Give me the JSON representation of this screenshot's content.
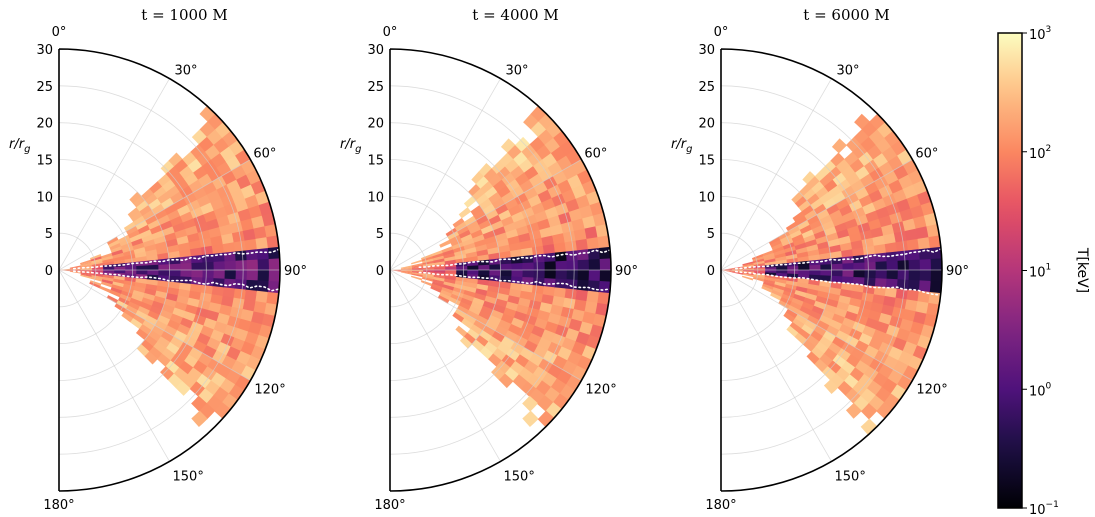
{
  "chart_data": [
    {
      "type": "heatmap",
      "title": "t = 1000 M",
      "projection": "polar-half",
      "ylabel": "r/r_g",
      "r_ticks": [
        "30",
        "25",
        "20",
        "15",
        "10",
        "5",
        "0"
      ],
      "theta_ticks": [
        "0°",
        "30°",
        "60°",
        "90°",
        "120°",
        "150°",
        "180°"
      ],
      "rlim": [
        0,
        30
      ],
      "theta_range_deg": [
        0,
        180
      ],
      "cold_band": {
        "theta_min_deg": 85,
        "theta_max_deg": 95,
        "r_start": 6,
        "value_keV": 0.3
      },
      "wedge_deg": 45,
      "seed": 11,
      "grid": true
    },
    {
      "type": "heatmap",
      "title": "t = 4000 M",
      "projection": "polar-half",
      "ylabel": "r/r_g",
      "r_ticks": [
        "30",
        "25",
        "20",
        "15",
        "10",
        "5",
        "0"
      ],
      "theta_ticks": [
        "0°",
        "30°",
        "60°",
        "90°",
        "120°",
        "150°",
        "180°"
      ],
      "rlim": [
        0,
        30
      ],
      "theta_range_deg": [
        0,
        180
      ],
      "cold_band": {
        "theta_min_deg": 85,
        "theta_max_deg": 95,
        "r_start": 8,
        "value_keV": 0.15
      },
      "wedge_deg": 45,
      "seed": 23,
      "grid": true
    },
    {
      "type": "heatmap",
      "title": "t = 6000 M",
      "projection": "polar-half",
      "ylabel": "r/r_g",
      "r_ticks": [
        "30",
        "25",
        "20",
        "15",
        "10",
        "5",
        "0"
      ],
      "theta_ticks": [
        "0°",
        "30°",
        "60°",
        "90°",
        "120°",
        "150°",
        "180°"
      ],
      "rlim": [
        0,
        30
      ],
      "theta_range_deg": [
        0,
        180
      ],
      "cold_band": {
        "theta_min_deg": 85,
        "theta_max_deg": 96,
        "r_start": 6,
        "value_keV": 0.2
      },
      "wedge_deg": 45,
      "seed": 37,
      "grid": true
    }
  ],
  "colorbar": {
    "label": "T[keV]",
    "scale": "log",
    "range": [
      0.1,
      1000
    ],
    "ticks": [
      {
        "value": 1000,
        "base": "10",
        "exp": "3"
      },
      {
        "value": 100,
        "base": "10",
        "exp": "2"
      },
      {
        "value": 10,
        "base": "10",
        "exp": "1"
      },
      {
        "value": 1,
        "base": "10",
        "exp": "0"
      },
      {
        "value": 0.1,
        "base": "10",
        "exp": "−1"
      }
    ],
    "colormap": "magma"
  }
}
